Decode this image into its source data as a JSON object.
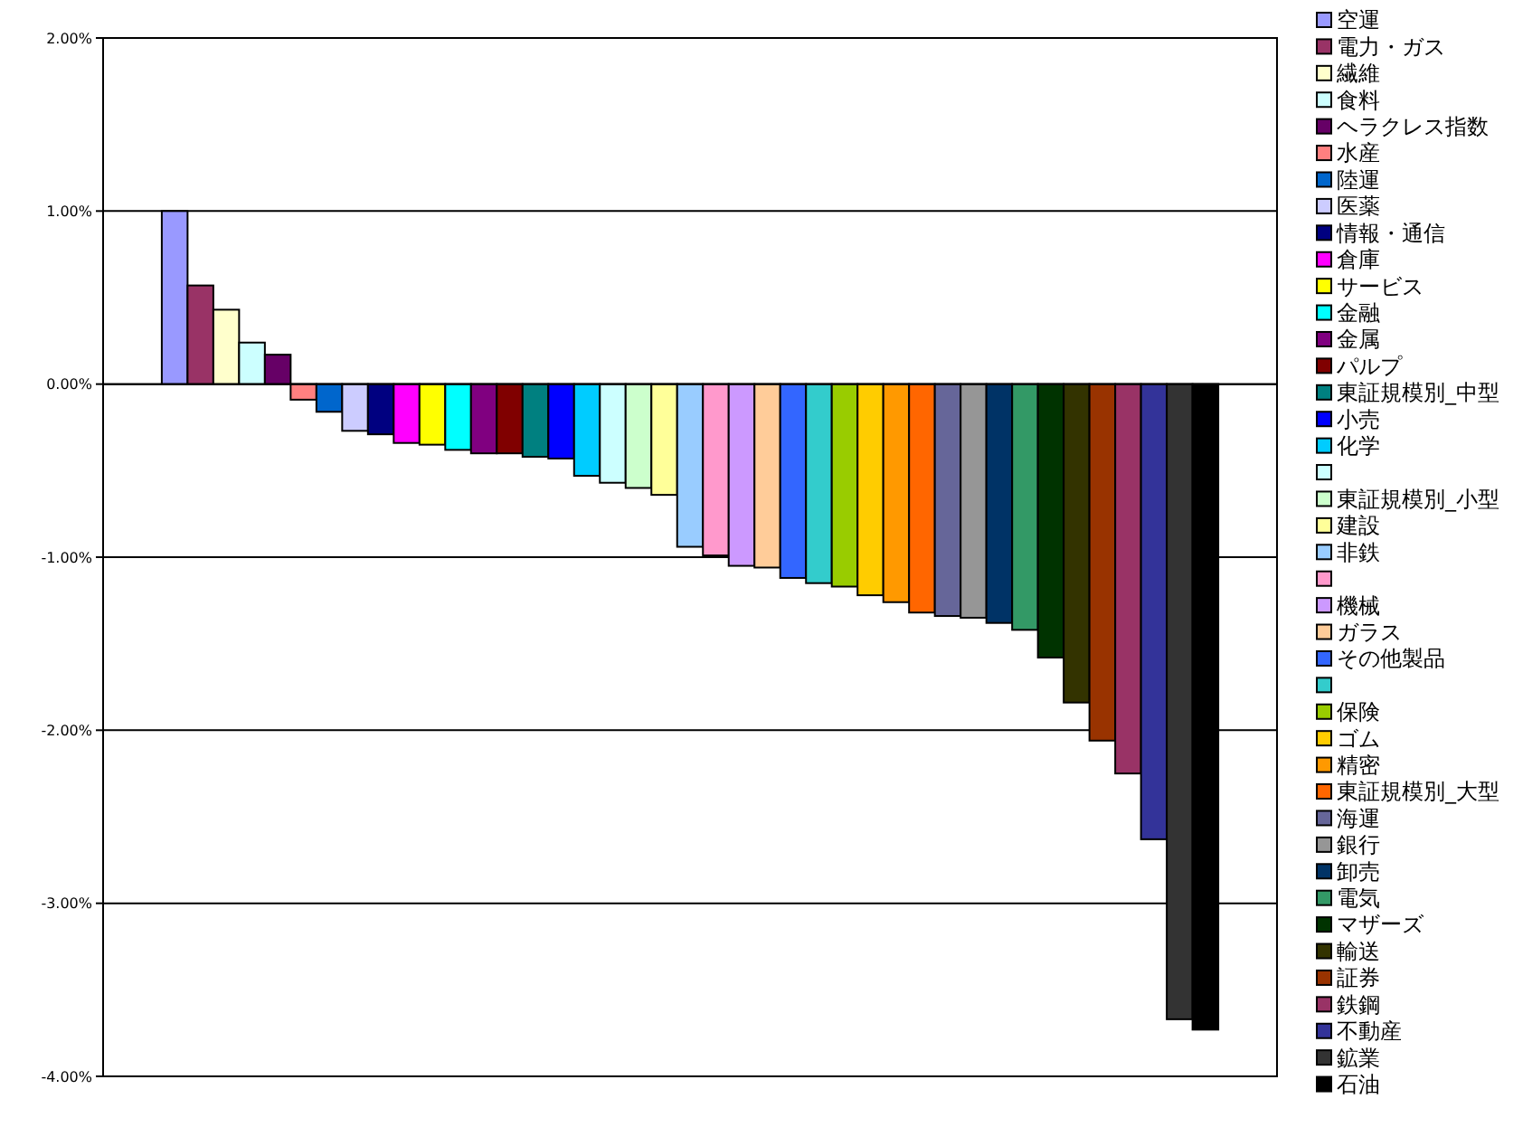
{
  "chart_data": {
    "type": "bar",
    "categories": [
      null
    ],
    "ylim": [
      -4,
      2
    ],
    "yticks": [
      {
        "value": -4,
        "label": "-4.00%"
      },
      {
        "value": -3,
        "label": "-3.00%"
      },
      {
        "value": -2,
        "label": "-2.00%"
      },
      {
        "value": -1,
        "label": "-1.00%"
      },
      {
        "value": 0,
        "label": "0.00%"
      },
      {
        "value": 1,
        "label": "1.00%"
      },
      {
        "value": 2,
        "label": "2.00%"
      }
    ],
    "grid": "y",
    "legend": "right",
    "series": [
      {
        "name": "空運",
        "color": "#9999ff",
        "values": [
          1.0
        ]
      },
      {
        "name": "電力・ガス",
        "color": "#993366",
        "values": [
          0.57
        ]
      },
      {
        "name": "繊維",
        "color": "#ffffcc",
        "values": [
          0.43
        ]
      },
      {
        "name": "食料",
        "color": "#ccffff",
        "values": [
          0.24
        ]
      },
      {
        "name": "ヘラクレス指数",
        "color": "#660066",
        "values": [
          0.17
        ]
      },
      {
        "name": "水産",
        "color": "#ff8080",
        "values": [
          -0.09
        ]
      },
      {
        "name": "陸運",
        "color": "#0066cc",
        "values": [
          -0.16
        ]
      },
      {
        "name": "医薬",
        "color": "#ccccff",
        "values": [
          -0.27
        ]
      },
      {
        "name": "情報・通信",
        "color": "#000080",
        "values": [
          -0.29
        ]
      },
      {
        "name": "倉庫",
        "color": "#ff00ff",
        "values": [
          -0.34
        ]
      },
      {
        "name": "サービス",
        "color": "#ffff00",
        "values": [
          -0.35
        ]
      },
      {
        "name": "金融",
        "color": "#00ffff",
        "values": [
          -0.38
        ]
      },
      {
        "name": "金属",
        "color": "#800080",
        "values": [
          -0.4
        ]
      },
      {
        "name": "パルプ",
        "color": "#800000",
        "values": [
          -0.4
        ]
      },
      {
        "name": "東証規模別_中型",
        "color": "#008080",
        "values": [
          -0.42
        ]
      },
      {
        "name": "小売",
        "color": "#0000ff",
        "values": [
          -0.43
        ]
      },
      {
        "name": "化学",
        "color": "#00ccff",
        "values": [
          -0.53
        ]
      },
      {
        "color": "#ccffff",
        "values": [
          -0.57
        ]
      },
      {
        "name": "東証規模別_小型",
        "color": "#ccffcc",
        "values": [
          -0.6
        ]
      },
      {
        "name": "建設",
        "color": "#ffff99",
        "values": [
          -0.64
        ]
      },
      {
        "name": "非鉄",
        "color": "#99ccff",
        "values": [
          -0.94
        ]
      },
      {
        "color": "#ff99cc",
        "values": [
          -0.99
        ]
      },
      {
        "name": "機械",
        "color": "#cc99ff",
        "values": [
          -1.05
        ]
      },
      {
        "name": "ガラス",
        "color": "#ffcc99",
        "values": [
          -1.06
        ]
      },
      {
        "name": "その他製品",
        "color": "#3366ff",
        "values": [
          -1.12
        ]
      },
      {
        "color": "#33cccc",
        "values": [
          -1.15
        ]
      },
      {
        "name": "保険",
        "color": "#99cc00",
        "values": [
          -1.17
        ]
      },
      {
        "name": "ゴム",
        "color": "#ffcc00",
        "values": [
          -1.22
        ]
      },
      {
        "name": "精密",
        "color": "#ff9900",
        "values": [
          -1.26
        ]
      },
      {
        "name": "東証規模別_大型",
        "color": "#ff6600",
        "values": [
          -1.32
        ]
      },
      {
        "name": "海運",
        "color": "#666699",
        "values": [
          -1.34
        ]
      },
      {
        "name": "銀行",
        "color": "#969696",
        "values": [
          -1.35
        ]
      },
      {
        "name": "卸売",
        "color": "#003366",
        "values": [
          -1.38
        ]
      },
      {
        "name": "電気",
        "color": "#339966",
        "values": [
          -1.42
        ]
      },
      {
        "name": "マザーズ",
        "color": "#003300",
        "values": [
          -1.58
        ]
      },
      {
        "name": "輸送",
        "color": "#333300",
        "values": [
          -1.84
        ]
      },
      {
        "name": "証券",
        "color": "#993300",
        "values": [
          -2.06
        ]
      },
      {
        "name": "鉄鋼",
        "color": "#993366",
        "values": [
          -2.25
        ]
      },
      {
        "name": "不動産",
        "color": "#333399",
        "values": [
          -2.63
        ]
      },
      {
        "name": "鉱業",
        "color": "#333333",
        "values": [
          -3.67
        ]
      },
      {
        "name": "石油",
        "color": "#000000",
        "values": [
          -3.73
        ]
      }
    ]
  }
}
